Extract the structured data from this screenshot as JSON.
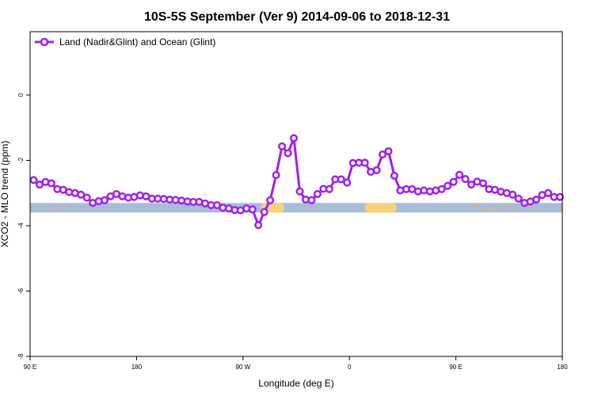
{
  "chart_data": {
    "type": "line",
    "title": "10S-5S September (Ver 9)   2014-09-06 to 2018-12-31",
    "xlabel": "Longitude (deg E)",
    "ylabel": "XCO2 - MLO trend (ppm)",
    "x_ticks": [
      {
        "value": 90,
        "label": "90 E"
      },
      {
        "value": 180,
        "label": "180"
      },
      {
        "value": 270,
        "label": "90 W"
      },
      {
        "value": 360,
        "label": "0"
      },
      {
        "value": 450,
        "label": "90 E"
      },
      {
        "value": 540,
        "label": "180"
      }
    ],
    "y_ticks": [
      {
        "value": 0,
        "label": "0"
      },
      {
        "value": -2,
        "label": "-2"
      },
      {
        "value": -4,
        "label": "-4"
      },
      {
        "value": -6,
        "label": "-6"
      },
      {
        "value": -8,
        "label": "-8"
      }
    ],
    "xlim": [
      90,
      540
    ],
    "ylim": [
      -8,
      1.8
    ],
    "grid": false,
    "legend_position": "top-left",
    "colors": {
      "series": "#a020f0",
      "ocean": "#a8bcd8",
      "land": "#f5d376",
      "land_edge": "#e8b24a"
    },
    "land_strip": {
      "y": -3.45,
      "segments": [
        [
          285,
          305
        ],
        [
          373,
          400
        ]
      ],
      "small_islands": [
        [
          104,
          122
        ],
        [
          128,
          135
        ],
        [
          465,
          500
        ],
        [
          510,
          518
        ]
      ]
    },
    "series": [
      {
        "name": "Land (Nadir&Glint) and Ocean (Glint)",
        "x": [
          93,
          98,
          103,
          108,
          113,
          118,
          123,
          128,
          133,
          138,
          143,
          148,
          153,
          158,
          163,
          168,
          173,
          178,
          183,
          188,
          193,
          198,
          203,
          208,
          213,
          218,
          223,
          228,
          233,
          238,
          243,
          248,
          253,
          258,
          263,
          268,
          273,
          278,
          283,
          288,
          293,
          298,
          303,
          308,
          313,
          318,
          323,
          328,
          333,
          338,
          343,
          348,
          353,
          358,
          363,
          368,
          373,
          378,
          383,
          388,
          393,
          398,
          403,
          408,
          413,
          418,
          423,
          428,
          433,
          438,
          443,
          448,
          453,
          458,
          463,
          468,
          473,
          478,
          483,
          488,
          493,
          498,
          503,
          508,
          513,
          518,
          523,
          528,
          533,
          538
        ],
        "y": [
          -2.6,
          -2.74,
          -2.66,
          -2.7,
          -2.88,
          -2.9,
          -2.97,
          -3.0,
          -3.05,
          -3.14,
          -3.3,
          -3.25,
          -3.22,
          -3.1,
          -3.03,
          -3.1,
          -3.14,
          -3.12,
          -3.07,
          -3.1,
          -3.17,
          -3.17,
          -3.18,
          -3.2,
          -3.21,
          -3.23,
          -3.26,
          -3.27,
          -3.27,
          -3.32,
          -3.37,
          -3.37,
          -3.45,
          -3.47,
          -3.52,
          -3.53,
          -3.47,
          -3.5,
          -3.98,
          -3.58,
          -3.22,
          -2.45,
          -1.57,
          -1.78,
          -1.32,
          -2.95,
          -3.2,
          -3.22,
          -3.03,
          -2.87,
          -2.88,
          -2.58,
          -2.58,
          -2.68,
          -2.08,
          -2.07,
          -2.07,
          -2.35,
          -2.3,
          -1.82,
          -1.72,
          -2.47,
          -2.92,
          -2.88,
          -2.88,
          -2.95,
          -2.92,
          -2.95,
          -2.92,
          -2.88,
          -2.78,
          -2.66,
          -2.44,
          -2.57,
          -2.74,
          -2.65,
          -2.7,
          -2.88,
          -2.9,
          -2.96,
          -3.0,
          -3.05,
          -3.17,
          -3.3,
          -3.26,
          -3.2,
          -3.06,
          -3.0,
          -3.12,
          -3.12
        ]
      }
    ]
  }
}
